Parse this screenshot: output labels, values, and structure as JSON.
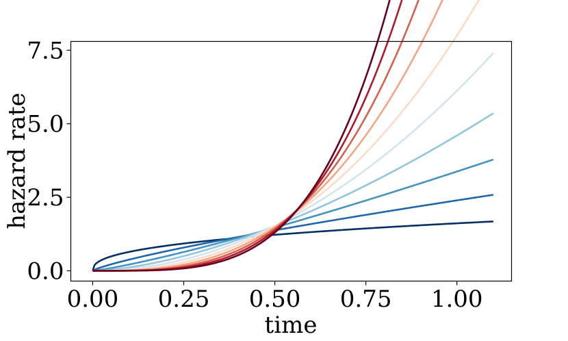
{
  "chart_data": {
    "type": "line",
    "title": "",
    "xlabel": "time",
    "ylabel": "hazard rate",
    "xlim": [
      -0.06,
      1.15
    ],
    "ylim": [
      -0.35,
      7.8
    ],
    "xticks": [
      0.0,
      0.25,
      0.5,
      0.75,
      1.0
    ],
    "xtick_labels": [
      "0.00",
      "0.25",
      "0.50",
      "0.75",
      "1.00"
    ],
    "yticks": [
      0.0,
      2.5,
      5.0,
      7.5
    ],
    "ytick_labels": [
      "0.0",
      "2.5",
      "5.0",
      "7.5"
    ],
    "grid": false,
    "legend": "none",
    "curve_model": "y = k * (x / 0.7)^(k - 1)",
    "x_range": [
      0.0,
      1.1
    ],
    "series": [
      {
        "k": 1.4,
        "color": "#053061"
      },
      {
        "k": 1.8,
        "color": "#2166ac"
      },
      {
        "k": 2.2,
        "color": "#4393c3"
      },
      {
        "k": 2.6,
        "color": "#92c5de"
      },
      {
        "k": 3.0,
        "color": "#d1e5f0"
      },
      {
        "k": 3.4,
        "color": "#fddbc7"
      },
      {
        "k": 3.8,
        "color": "#f4a582"
      },
      {
        "k": 4.2,
        "color": "#d6604d"
      },
      {
        "k": 4.6,
        "color": "#b2182b"
      },
      {
        "k": 5.0,
        "color": "#67001f"
      }
    ]
  }
}
